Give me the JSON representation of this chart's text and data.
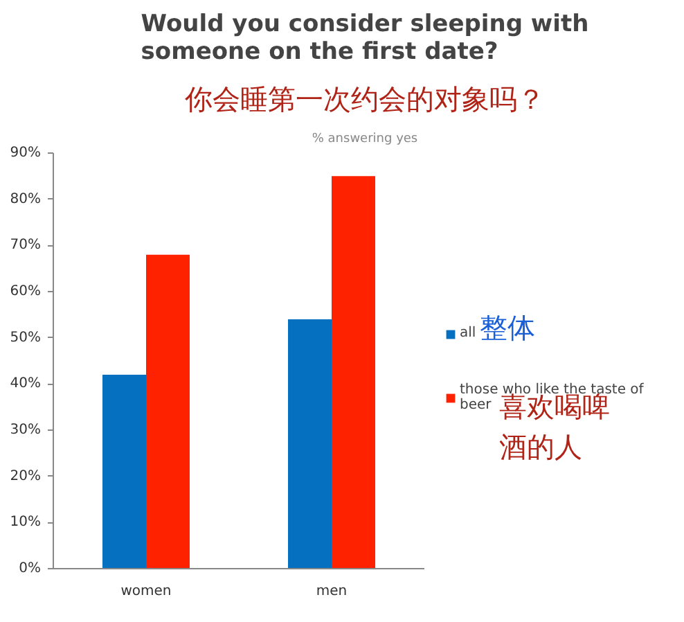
{
  "chart_data": {
    "type": "bar",
    "title": "Would you consider sleeping with someone on the first date?",
    "subtitle": "% answering yes",
    "categories": [
      "women",
      "men"
    ],
    "series": [
      {
        "name": "all",
        "color": "#0570c0",
        "values": [
          42,
          54
        ]
      },
      {
        "name": "those who like the taste of beer",
        "color": "#ff2200",
        "values": [
          68,
          85
        ]
      }
    ],
    "ylim": [
      0,
      90
    ],
    "yticks": [
      {
        "value": 0,
        "label": "0%"
      },
      {
        "value": 10,
        "label": "10%"
      },
      {
        "value": 20,
        "label": "20%"
      },
      {
        "value": 30,
        "label": "30%"
      },
      {
        "value": 40,
        "label": "40%"
      },
      {
        "value": 50,
        "label": "50%"
      },
      {
        "value": 60,
        "label": "60%"
      },
      {
        "value": 70,
        "label": "70%"
      },
      {
        "value": 80,
        "label": "80%"
      },
      {
        "value": 90,
        "label": "90%"
      }
    ],
    "grid": false,
    "legend": "right",
    "annotations": [
      "你会睡第一次约会的对象吗？",
      "整体",
      "喜欢喝啤酒的人"
    ]
  }
}
